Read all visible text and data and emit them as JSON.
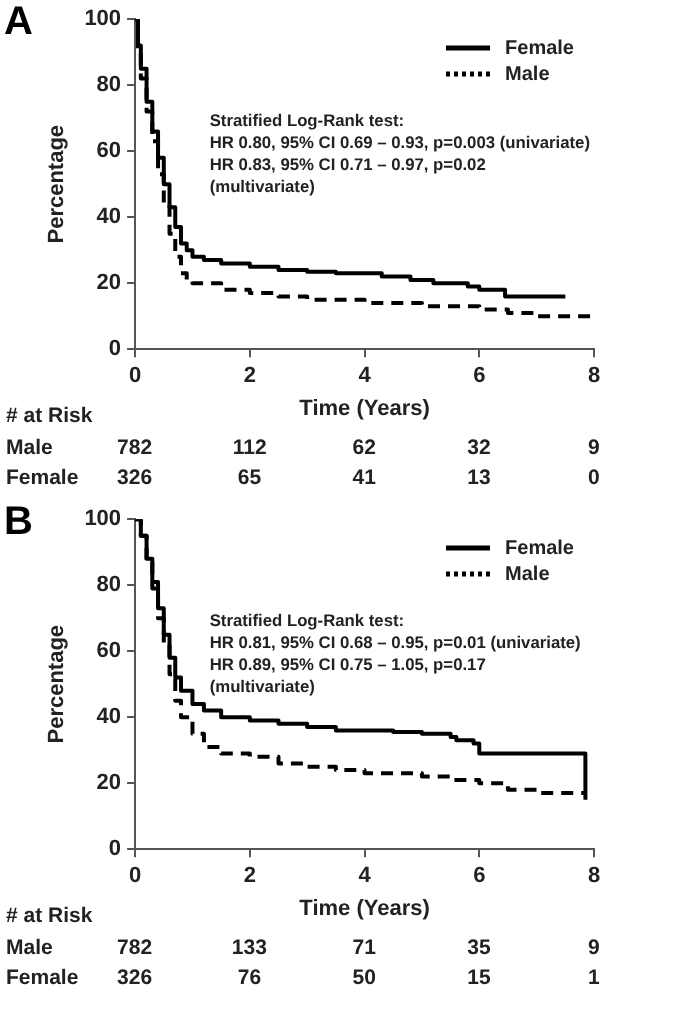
{
  "chart_data": [
    {
      "type": "step",
      "title": "A",
      "xlabel": "Time (Years)",
      "ylabel": "Percentage",
      "xlim": [
        0,
        8
      ],
      "xticks": [
        0,
        2,
        4,
        6,
        8
      ],
      "ylim": [
        0,
        100
      ],
      "yticks": [
        0,
        20,
        40,
        60,
        80,
        100
      ],
      "legend": "top right",
      "grid": false,
      "marker": "none",
      "annotations": [
        "Stratified Log-Rank test:",
        "HR 0.80, 95% CI 0.69 – 0.93, p=0.003 (univariate)",
        "HR 0.83, 95% CI 0.71 – 0.97, p=0.02",
        "(multivariate)",
        "# at Risk",
        "Male",
        "782",
        "112",
        "62",
        "32",
        "9",
        "Female",
        "326",
        "65",
        "41",
        "13",
        "0"
      ],
      "series": [
        {
          "name": "Female",
          "color": "#000000",
          "line_style": "solid",
          "x": [
            0,
            0.05,
            0.1,
            0.2,
            0.3,
            0.4,
            0.5,
            0.6,
            0.7,
            0.8,
            0.9,
            1.0,
            1.2,
            1.5,
            2,
            2.5,
            3,
            3.5,
            4,
            4.3,
            4.8,
            5.2,
            5.8,
            6,
            6.45,
            7.5
          ],
          "values": [
            100,
            92,
            85,
            75,
            66,
            58,
            50,
            43,
            37,
            32,
            30,
            28,
            27,
            26,
            25,
            24,
            23.5,
            23,
            23,
            22,
            21,
            20,
            19,
            18,
            16,
            16
          ]
        },
        {
          "name": "Male",
          "color": "#000000",
          "line_style": "dashed",
          "x": [
            0,
            0.05,
            0.1,
            0.2,
            0.3,
            0.4,
            0.5,
            0.6,
            0.7,
            0.8,
            0.9,
            1,
            1.5,
            2,
            2.5,
            3,
            4,
            5,
            6,
            6.5,
            7,
            8
          ],
          "values": [
            100,
            90,
            82,
            72,
            63,
            53,
            44,
            35,
            28,
            23,
            21,
            20,
            18,
            17,
            16,
            15,
            14,
            13,
            12,
            11,
            10,
            10
          ]
        }
      ]
    },
    {
      "type": "step",
      "title": "B",
      "xlabel": "Time (Years)",
      "ylabel": "Percentage",
      "xlim": [
        0,
        8
      ],
      "xticks": [
        0,
        2,
        4,
        6,
        8
      ],
      "ylim": [
        0,
        100
      ],
      "yticks": [
        0,
        20,
        40,
        60,
        80,
        100
      ],
      "legend": "top right",
      "grid": false,
      "marker": "none",
      "annotations": [
        "Stratified Log-Rank test:",
        "HR 0.81, 95% CI 0.68 – 0.95, p=0.01 (univariate)",
        "HR 0.89, 95% CI 0.75 – 1.05, p=0.17",
        "(multivariate)",
        "# at Risk",
        "Male",
        "782",
        "133",
        "71",
        "35",
        "9",
        "Female",
        "326",
        "76",
        "50",
        "15",
        "1"
      ],
      "series": [
        {
          "name": "Female",
          "color": "#000000",
          "line_style": "solid",
          "x": [
            0,
            0.1,
            0.2,
            0.3,
            0.4,
            0.5,
            0.6,
            0.7,
            0.8,
            1,
            1.2,
            1.5,
            2,
            2.5,
            3,
            3.5,
            4,
            4.5,
            5,
            5.5,
            5.6,
            5.9,
            6,
            7.85,
            7.85
          ],
          "values": [
            100,
            95,
            88,
            81,
            73,
            65,
            58,
            52,
            48,
            44,
            42,
            40,
            39,
            38,
            37,
            36,
            36,
            35.5,
            35,
            34,
            33,
            32,
            29,
            29,
            15
          ]
        },
        {
          "name": "Male",
          "color": "#000000",
          "line_style": "dashed",
          "x": [
            0,
            0.1,
            0.2,
            0.3,
            0.4,
            0.5,
            0.6,
            0.7,
            0.8,
            1,
            1.2,
            1.5,
            2,
            2.5,
            3,
            3.5,
            4,
            5,
            5.5,
            6,
            6.5,
            7,
            7.85
          ],
          "values": [
            100,
            95,
            87,
            79,
            70,
            62,
            53,
            45,
            40,
            35,
            31,
            29,
            28,
            26,
            25,
            24,
            23,
            22,
            21,
            20,
            18,
            17,
            17
          ]
        }
      ]
    }
  ]
}
